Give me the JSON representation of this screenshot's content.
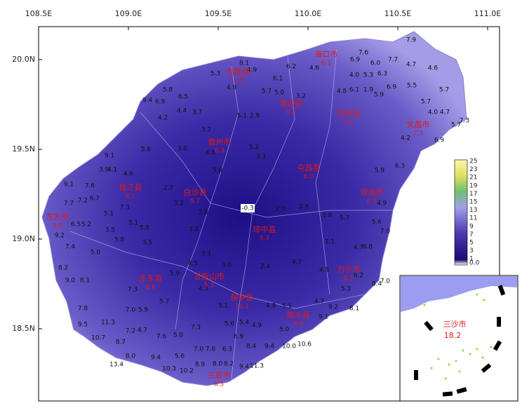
{
  "map": {
    "lon_ticks": [
      {
        "value": 108.5,
        "label": "108.5E"
      },
      {
        "value": 109,
        "label": "109.0E"
      },
      {
        "value": 109.5,
        "label": "109.5E"
      },
      {
        "value": 110,
        "label": "110.0E"
      },
      {
        "value": 110.5,
        "label": "110.5E"
      },
      {
        "value": 111,
        "label": "111.0E"
      }
    ],
    "lat_ticks": [
      {
        "value": 20,
        "label": "20.0N"
      },
      {
        "value": 19.5,
        "label": "19.5N"
      },
      {
        "value": 19,
        "label": "19.0N"
      },
      {
        "value": 18.5,
        "label": "18.5N"
      }
    ],
    "cities": [
      {
        "name": "海口市",
        "value": 6.1
      },
      {
        "name": "临高县",
        "value": 5.5
      },
      {
        "name": "澄迈县",
        "value": 6.5
      },
      {
        "name": "定安县",
        "value": 6.4
      },
      {
        "name": "文昌市",
        "value": 7.3
      },
      {
        "name": "儋州市",
        "value": 6.3
      },
      {
        "name": "屯昌县",
        "value": {
          "value": 6,
          "label": "6.0"
        }
      },
      {
        "name": "白沙县",
        "value": 5.7
      },
      {
        "name": "昌江县",
        "value": 8.1
      },
      {
        "name": "琼海市",
        "value": 6.3
      },
      {
        "name": "东方市",
        "value": {
          "value": 9,
          "label": "9.0"
        }
      },
      {
        "name": "琼中县",
        "value": 5.7
      },
      {
        "name": "五指山市",
        "value": 5.3
      },
      {
        "name": "乐东县",
        "value": 8.6
      },
      {
        "name": "万宁市",
        "value": 8.1
      },
      {
        "name": "保亭县",
        "value": 11.1
      },
      {
        "name": "陵水县",
        "value": 9.6
      },
      {
        "name": "三亚市",
        "value": 8.5
      }
    ],
    "stations": [
      7.9,
      7.6,
      6.9,
      7.7,
      {
        "value": 6,
        "label": "6.0"
      },
      4.7,
      4.6,
      8.1,
      6.2,
      4.6,
      5.3,
      4.9,
      6.1,
      4.9,
      5.7,
      {
        "value": 5,
        "label": "5.0"
      },
      {
        "value": 4,
        "label": "4.0"
      },
      5.3,
      6.3,
      4.8,
      6.1,
      1.9,
      5.9,
      6.9,
      5.5,
      5.7,
      3.2,
      5.8,
      6.5,
      9.4,
      6.9,
      4.4,
      3.7,
      5.1,
      2.9,
      4.2,
      5.7,
      {
        "value": 4,
        "label": "4.0"
      },
      4.7,
      7.3,
      5.7,
      6.9,
      4.2,
      3.7,
      {
        "value": 3,
        "label": "3.0"
      },
      4.8,
      {
        "value": 5,
        "label": "5.0"
      },
      5.2,
      3.3,
      9.1,
      3.9,
      4.1,
      4.6,
      5.6,
      2.7,
      3.2,
      2.8,
      9.1,
      7.6,
      7.7,
      7.2,
      6.7,
      5.1,
      6.5,
      5.2,
      3.5,
      7.3,
      3.1,
      5.8,
      9.2,
      7.4,
      {
        "value": 5,
        "label": "5.0"
      },
      5.8,
      3.5,
      3.2,
      -0.3,
      {
        "value": 2,
        "label": "2.0"
      },
      2.8,
      3.8,
      5.7,
      6.3,
      5.9,
      4.9,
      5.6,
      {
        "value": 7,
        "label": "7.0"
      },
      3.1,
      4.7,
      6.8,
      8.2,
      {
        "value": 9,
        "label": "9.0"
      },
      8.1,
      7.3,
      5.9,
      4.5,
      3.1,
      {
        "value": 3,
        "label": "3.0"
      },
      2.4,
      4.7,
      4.8,
      5.3,
      6.2,
      8.4,
      {
        "value": 7,
        "label": "7.0"
      },
      7.8,
      {
        "value": 7,
        "label": "7.0"
      },
      5.9,
      5.7,
      4.3,
      5.1,
      4.9,
      5.1,
      4.7,
      9.2,
      8.1,
      9.1,
      9.5,
      11.3,
      7.2,
      4.7,
      7.3,
      5.6,
      5.4,
      4.9,
      6.9,
      10.7,
      8.7,
      7.6,
      {
        "value": 5,
        "label": "5.0"
      },
      8.4,
      9.4,
      {
        "value": 10,
        "label": "10.0"
      },
      10.6,
      {
        "value": 8,
        "label": "8.0"
      },
      9.4,
      5.6,
      {
        "value": 7,
        "label": "7.0"
      },
      7.8,
      6.3,
      13.4,
      10.3,
      10.2,
      8.9,
      {
        "value": 8,
        "label": "8.0"
      },
      8.2,
      9.4,
      11.3,
      {
        "value": 5,
        "label": "5.0"
      }
    ],
    "colorbar": [
      25,
      23,
      21,
      19,
      17,
      15,
      13,
      11,
      9,
      7,
      5,
      3,
      1,
      {
        "value": 0,
        "label": "0.0"
      }
    ],
    "inset": {
      "name": "三沙市",
      "value": 18.2
    }
  }
}
